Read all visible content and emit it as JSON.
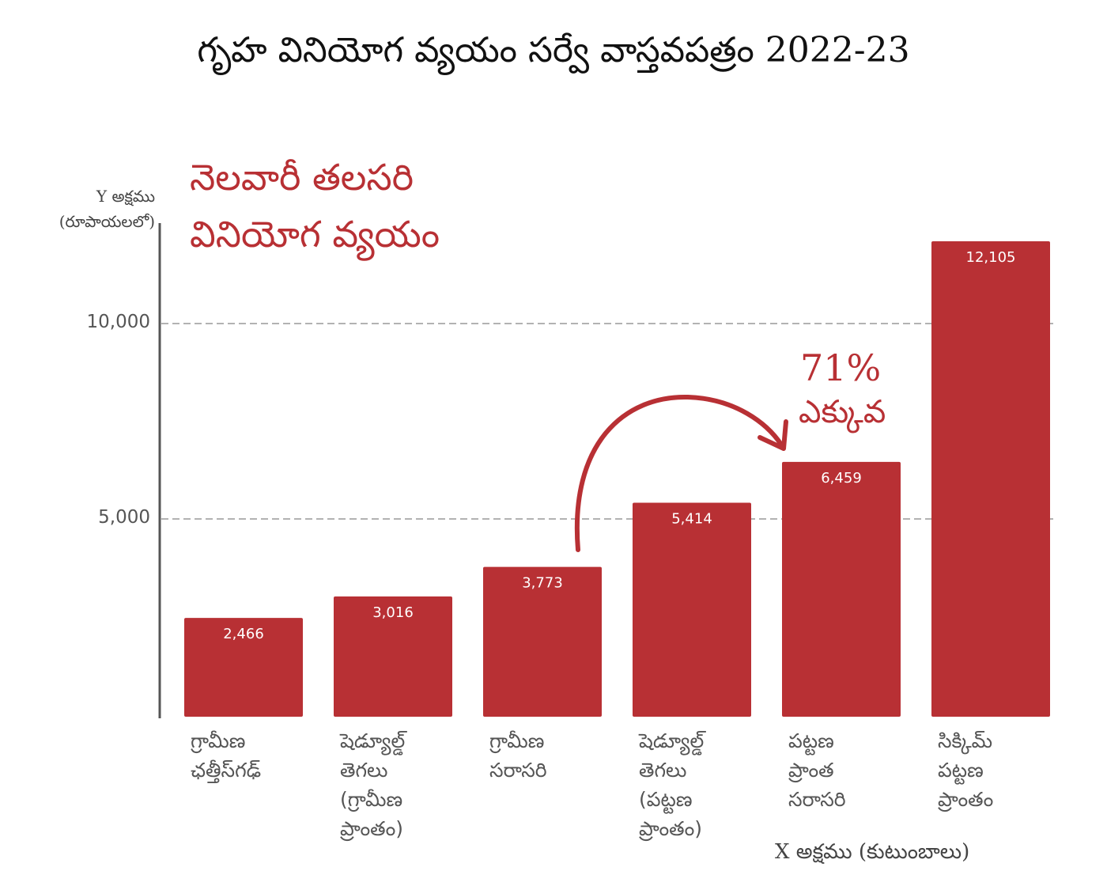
{
  "colors": {
    "bar": "#b83034",
    "accent": "#b83034",
    "axis": "#555555",
    "grid": "#999999",
    "label": "#ffffff"
  },
  "chart_data": {
    "type": "bar",
    "title": "గృహ వినియోగ వ్యయం సర్వే వాస్తవపత్రం 2022-23",
    "subtitle": "నెలవారీ తలసరి\nవినియోగ వ్యయం",
    "ylabel": "Y అక్షము\n(రూపాయలలో)",
    "xlabel": "X అక్షము (కుటుంబాలు)",
    "ylim": [
      0,
      12500
    ],
    "yticks": [
      5000,
      10000
    ],
    "ytick_labels": [
      "5,000",
      "10,000"
    ],
    "grid": true,
    "categories": [
      "గ్రామీణ\nఛత్తీస్‌గఢ్",
      "షెడ్యూల్డ్\nతెగలు\n(గ్రామీణ\nప్రాంతం)",
      "గ్రామీణ\nసరాసరి",
      "షెడ్యూల్డ్\nతెగలు\n(పట్టణ\nప్రాంతం)",
      "పట్టణ\nప్రాంత\nసరాసరి",
      "సిక్కిమ్\nపట్టణ\nప్రాంతం"
    ],
    "values": [
      2466,
      3016,
      3773,
      5414,
      6459,
      12105
    ],
    "value_labels": [
      "2,466",
      "3,016",
      "3,773",
      "5,414",
      "6,459",
      "12,105"
    ],
    "annotations": [
      {
        "from_category": 2,
        "to_category": 4,
        "text_value": "71%",
        "text_label": "ఎక్కువ"
      }
    ]
  }
}
